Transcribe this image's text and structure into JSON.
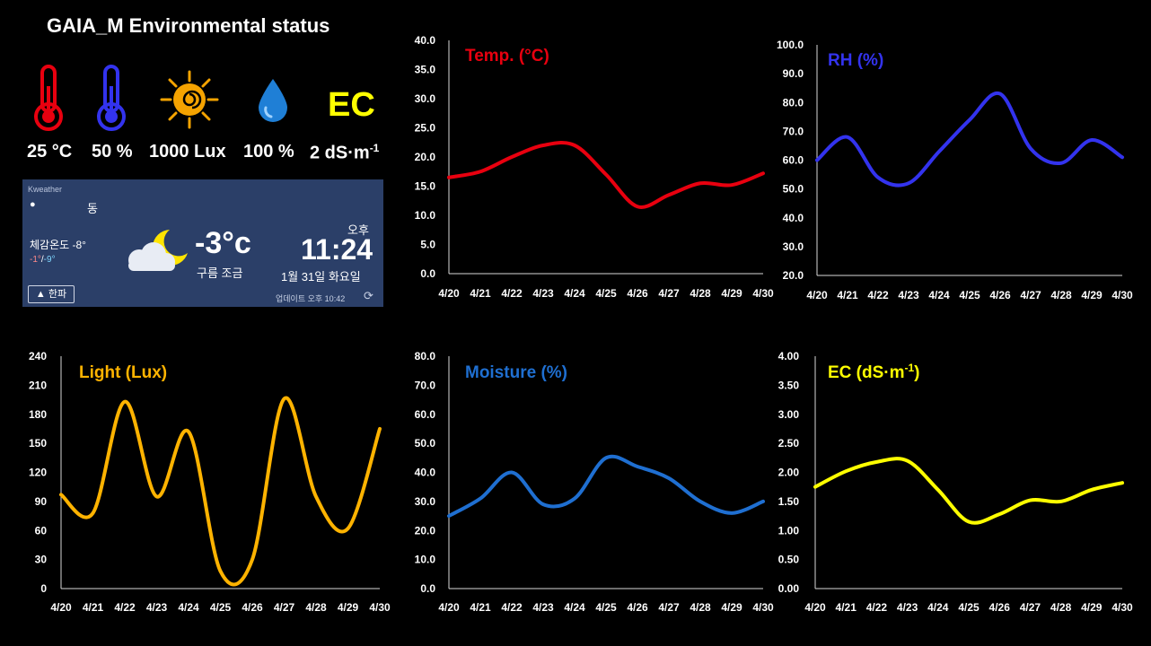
{
  "header": {
    "title": "GAIA_M  Environmental status"
  },
  "stats": [
    {
      "icon": "thermometer-red-icon",
      "value": "25 °C"
    },
    {
      "icon": "thermometer-blue-icon",
      "value": "50 %"
    },
    {
      "icon": "sun-icon",
      "value": "1000 Lux"
    },
    {
      "icon": "water-drop-icon",
      "value": "100 %"
    },
    {
      "icon": "ec-text-icon",
      "icon_text": "EC",
      "value": "2 dS·m",
      "value_sup": "-1"
    }
  ],
  "weather": {
    "brand": "Kweather",
    "location": "동",
    "feels_like": "체감온도 -8°",
    "min": "-1°",
    "sep": "/",
    "max": "-9°",
    "temperature": "-3°c",
    "condition": "구름 조금",
    "ampm": "오후",
    "time": "11:24",
    "date": "1월 31일 화요일",
    "alert_button": "▲ 한파",
    "update": "업데이트 오후 10:42"
  },
  "chart_data": [
    {
      "type": "line",
      "title": "Temp. (°C)",
      "color": "#e8000f",
      "categories": [
        "4/20",
        "4/21",
        "4/22",
        "4/23",
        "4/24",
        "4/25",
        "4/26",
        "4/27",
        "4/28",
        "4/29",
        "4/30"
      ],
      "values": [
        16.5,
        17.5,
        20.0,
        22.0,
        22.0,
        17.0,
        11.5,
        13.5,
        15.5,
        15.2,
        17.2
      ],
      "ylim": [
        0,
        40
      ],
      "yticks": [
        "0.0",
        "5.0",
        "10.0",
        "15.0",
        "20.0",
        "25.0",
        "30.0",
        "35.0",
        "40.0"
      ]
    },
    {
      "type": "line",
      "title": "RH (%)",
      "color": "#3333ee",
      "categories": [
        "4/20",
        "4/21",
        "4/22",
        "4/23",
        "4/24",
        "4/25",
        "4/26",
        "4/27",
        "4/28",
        "4/29",
        "4/30"
      ],
      "values": [
        60,
        68,
        54,
        52,
        63,
        74,
        83,
        64,
        59,
        67,
        61
      ],
      "ylim": [
        20,
        100
      ],
      "yticks": [
        "20.0",
        "30.0",
        "40.0",
        "50.0",
        "60.0",
        "70.0",
        "80.0",
        "90.0",
        "100.0"
      ]
    },
    {
      "type": "line",
      "title": "Light (Lux)",
      "color": "#ffb300",
      "categories": [
        "4/20",
        "4/21",
        "4/22",
        "4/23",
        "4/24",
        "4/25",
        "4/26",
        "4/27",
        "4/28",
        "4/29",
        "4/30"
      ],
      "values": [
        97,
        78,
        193,
        95,
        162,
        18,
        30,
        196,
        95,
        62,
        165
      ],
      "ylim": [
        0,
        240
      ],
      "yticks": [
        "0",
        "30",
        "60",
        "90",
        "120",
        "150",
        "180",
        "210",
        "240"
      ]
    },
    {
      "type": "line",
      "title": "Moisture (%)",
      "color": "#1f6fd1",
      "categories": [
        "4/20",
        "4/21",
        "4/22",
        "4/23",
        "4/24",
        "4/25",
        "4/26",
        "4/27",
        "4/28",
        "4/29",
        "4/30"
      ],
      "values": [
        25,
        31,
        40,
        29,
        31,
        45,
        42,
        38,
        30,
        26,
        30
      ],
      "ylim": [
        0,
        80
      ],
      "yticks": [
        "0.0",
        "10.0",
        "20.0",
        "30.0",
        "40.0",
        "50.0",
        "60.0",
        "70.0",
        "80.0"
      ]
    },
    {
      "type": "line",
      "title": "EC (dS·m",
      "title_sup": "-1",
      "title_end": ")",
      "color": "#ffff00",
      "categories": [
        "4/20",
        "4/21",
        "4/22",
        "4/23",
        "4/24",
        "4/25",
        "4/26",
        "4/27",
        "4/28",
        "4/29",
        "4/30"
      ],
      "values": [
        1.75,
        2.02,
        2.18,
        2.2,
        1.7,
        1.15,
        1.28,
        1.52,
        1.5,
        1.7,
        1.82
      ],
      "ylim": [
        0,
        4
      ],
      "yticks": [
        "0.00",
        "0.50",
        "1.00",
        "1.50",
        "2.00",
        "2.50",
        "3.00",
        "3.50",
        "4.00"
      ]
    }
  ]
}
